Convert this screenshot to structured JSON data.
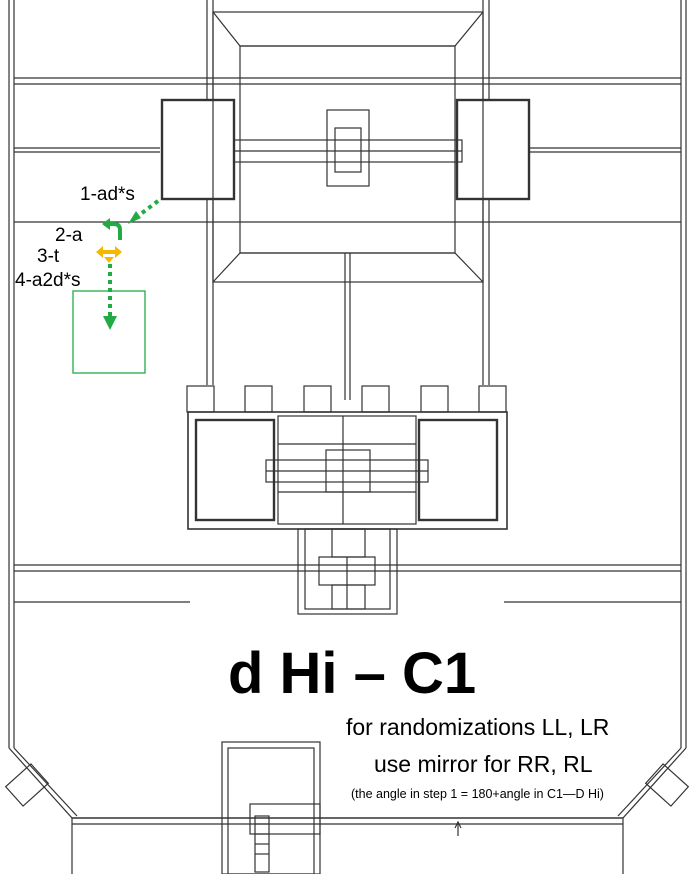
{
  "diagram_title": "d Hi – C1",
  "notes": {
    "line1": "for randomizations  LL, LR",
    "line2": "use mirror for RR, RL",
    "line3": "(the angle in step 1 = 180+angle in C1—D Hi)"
  },
  "steps": [
    {
      "label": "1-ad*s",
      "color": "#22aa44"
    },
    {
      "label": "2-a",
      "color": "#22aa44"
    },
    {
      "label": "3-t",
      "color": "#f5b800"
    },
    {
      "label": "4-a2d*s",
      "color": "#22aa44"
    }
  ],
  "colors": {
    "path_green": "#22aa44",
    "turn_orange": "#f5b800",
    "target_box": "#22aa44",
    "floorplan_lines": "#333333"
  }
}
